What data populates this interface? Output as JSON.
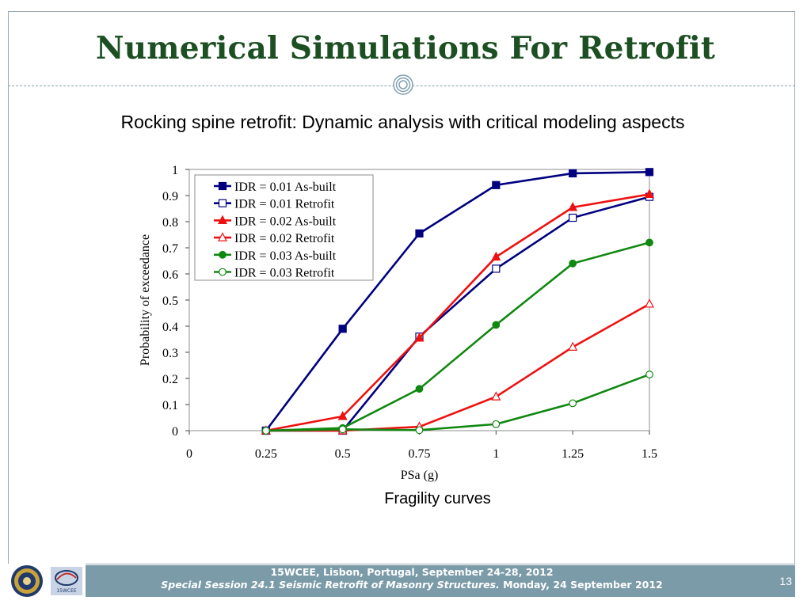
{
  "slide": {
    "title": "Numerical Simulations For Retrofit",
    "subtitle": "Rocking spine retrofit: Dynamic analysis with critical modeling aspects",
    "caption": "Fragility curves",
    "footer_line1": "15WCEE, Lisbon, Portugal, September 24-28, 2012",
    "footer_line2_italic": "Special Session 24.1 Seismic Retrofit of Masonry Structures.",
    "footer_line2_date": "Monday, 24 September 2012",
    "page_number": "13",
    "logo2_text": "15WCEE"
  },
  "colors": {
    "title": "#1c4f22",
    "footer_bg": "#7b9ba8",
    "navy": "#000080",
    "red": "#ee1111",
    "green": "#118811"
  },
  "chart_data": {
    "type": "line",
    "xlabel": "PSa (g)",
    "ylabel": "Probability of exceedance",
    "xlim": [
      0,
      1.5
    ],
    "ylim": [
      0,
      1
    ],
    "x_ticks": [
      "0",
      "0.25",
      "0.5",
      "0.75",
      "1",
      "1.25",
      "1.5"
    ],
    "y_ticks": [
      "0",
      "0.1",
      "0.2",
      "0.3",
      "0.4",
      "0.5",
      "0.6",
      "0.7",
      "0.8",
      "0.9",
      "1"
    ],
    "grid": false,
    "legend_position": "top-left",
    "x": [
      0.25,
      0.5,
      0.75,
      1.0,
      1.25,
      1.5
    ],
    "series": [
      {
        "name": "IDR = 0.01 As-built",
        "color": "#000080",
        "marker": "square",
        "filled": true,
        "values": [
          0.0,
          0.39,
          0.755,
          0.94,
          0.985,
          0.99
        ]
      },
      {
        "name": "IDR = 0.01 Retrofit",
        "color": "#000080",
        "marker": "square",
        "filled": false,
        "values": [
          0.0,
          0.0,
          0.36,
          0.62,
          0.815,
          0.895
        ]
      },
      {
        "name": "IDR = 0.02 As-built",
        "color": "#ee1111",
        "marker": "triangle",
        "filled": true,
        "values": [
          0.0,
          0.055,
          0.355,
          0.665,
          0.855,
          0.905
        ]
      },
      {
        "name": "IDR = 0.02 Retrofit",
        "color": "#ee1111",
        "marker": "triangle",
        "filled": false,
        "values": [
          0.0,
          0.0,
          0.015,
          0.13,
          0.32,
          0.485
        ]
      },
      {
        "name": "IDR = 0.03 As-built",
        "color": "#118811",
        "marker": "circle",
        "filled": true,
        "values": [
          0.0,
          0.01,
          0.16,
          0.405,
          0.64,
          0.72
        ]
      },
      {
        "name": "IDR = 0.03 Retrofit",
        "color": "#118811",
        "marker": "circle",
        "filled": false,
        "values": [
          0.0,
          0.005,
          0.002,
          0.025,
          0.105,
          0.215
        ]
      }
    ]
  }
}
